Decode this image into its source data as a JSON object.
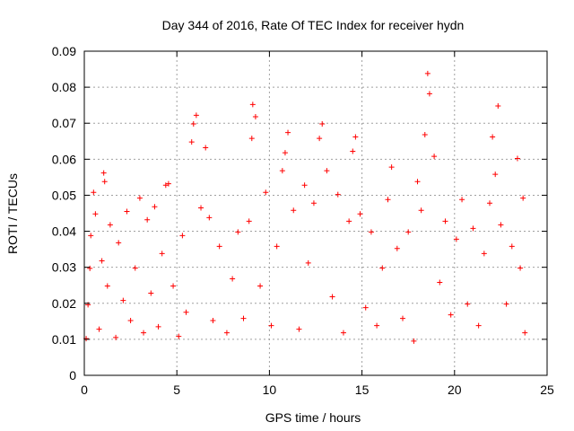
{
  "chart_data": {
    "type": "scatter",
    "title": "Day 344 of 2016, Rate Of TEC Index for receiver hydn",
    "xlabel": "GPS time / hours",
    "ylabel": "ROTI / TECUs",
    "xlim": [
      0,
      25
    ],
    "ylim": [
      0,
      0.09
    ],
    "x_ticks": [
      0,
      5,
      10,
      15,
      20,
      25
    ],
    "x_tick_labels": [
      "0",
      "5",
      "10",
      "15",
      "20",
      "25"
    ],
    "y_ticks": [
      0,
      0.01,
      0.02,
      0.03,
      0.04,
      0.05,
      0.06,
      0.07,
      0.08,
      0.09
    ],
    "y_tick_labels": [
      "0",
      "0.01",
      "0.02",
      "0.03",
      "0.04",
      "0.05",
      "0.06",
      "0.07",
      "0.08",
      "0.09"
    ],
    "grid": true,
    "legend": "none",
    "marker": "plus",
    "series": [
      {
        "color": "#ff0000",
        "points": [
          [
            0.1,
            0.0102
          ],
          [
            0.2,
            0.0196
          ],
          [
            0.3,
            0.0297
          ],
          [
            0.35,
            0.0388
          ],
          [
            0.5,
            0.0508
          ],
          [
            0.6,
            0.0448
          ],
          [
            0.8,
            0.0128
          ],
          [
            0.95,
            0.0318
          ],
          [
            1.05,
            0.0562
          ],
          [
            1.1,
            0.0538
          ],
          [
            1.25,
            0.0248
          ],
          [
            1.4,
            0.0418
          ],
          [
            1.7,
            0.0105
          ],
          [
            1.85,
            0.0368
          ],
          [
            2.1,
            0.0208
          ],
          [
            2.3,
            0.0455
          ],
          [
            2.5,
            0.0152
          ],
          [
            2.75,
            0.0298
          ],
          [
            3.0,
            0.0492
          ],
          [
            3.2,
            0.0118
          ],
          [
            3.4,
            0.0432
          ],
          [
            3.6,
            0.0228
          ],
          [
            3.8,
            0.0468
          ],
          [
            4.0,
            0.0135
          ],
          [
            4.2,
            0.0338
          ],
          [
            4.4,
            0.0528
          ],
          [
            4.55,
            0.0532
          ],
          [
            4.8,
            0.0248
          ],
          [
            5.1,
            0.0108
          ],
          [
            5.3,
            0.0388
          ],
          [
            5.5,
            0.0175
          ],
          [
            5.8,
            0.0648
          ],
          [
            5.9,
            0.0698
          ],
          [
            6.05,
            0.0722
          ],
          [
            6.3,
            0.0465
          ],
          [
            6.55,
            0.0632
          ],
          [
            6.75,
            0.0438
          ],
          [
            6.95,
            0.0152
          ],
          [
            7.3,
            0.0358
          ],
          [
            7.7,
            0.0118
          ],
          [
            8.0,
            0.0268
          ],
          [
            8.3,
            0.0398
          ],
          [
            8.6,
            0.0158
          ],
          [
            8.9,
            0.0428
          ],
          [
            9.05,
            0.0658
          ],
          [
            9.1,
            0.0752
          ],
          [
            9.25,
            0.0718
          ],
          [
            9.5,
            0.0248
          ],
          [
            9.8,
            0.0508
          ],
          [
            10.1,
            0.0138
          ],
          [
            10.4,
            0.0358
          ],
          [
            10.7,
            0.0568
          ],
          [
            10.85,
            0.0618
          ],
          [
            11.0,
            0.0674
          ],
          [
            11.3,
            0.0458
          ],
          [
            11.6,
            0.0128
          ],
          [
            11.9,
            0.0528
          ],
          [
            12.1,
            0.0312
          ],
          [
            12.4,
            0.0478
          ],
          [
            12.7,
            0.0658
          ],
          [
            12.85,
            0.0698
          ],
          [
            13.1,
            0.0568
          ],
          [
            13.4,
            0.0218
          ],
          [
            13.7,
            0.0502
          ],
          [
            14.0,
            0.0118
          ],
          [
            14.3,
            0.0428
          ],
          [
            14.5,
            0.0622
          ],
          [
            14.65,
            0.0662
          ],
          [
            14.9,
            0.0448
          ],
          [
            15.2,
            0.0188
          ],
          [
            15.5,
            0.0398
          ],
          [
            15.8,
            0.0138
          ],
          [
            16.1,
            0.0298
          ],
          [
            16.4,
            0.0488
          ],
          [
            16.6,
            0.0578
          ],
          [
            16.9,
            0.0352
          ],
          [
            17.2,
            0.0158
          ],
          [
            17.5,
            0.0398
          ],
          [
            17.8,
            0.0095
          ],
          [
            18.0,
            0.0538
          ],
          [
            18.2,
            0.0458
          ],
          [
            18.4,
            0.0668
          ],
          [
            18.55,
            0.0838
          ],
          [
            18.65,
            0.0782
          ],
          [
            18.9,
            0.0608
          ],
          [
            19.2,
            0.0258
          ],
          [
            19.5,
            0.0428
          ],
          [
            19.8,
            0.0168
          ],
          [
            20.1,
            0.0378
          ],
          [
            20.4,
            0.0488
          ],
          [
            20.7,
            0.0198
          ],
          [
            21.0,
            0.0408
          ],
          [
            21.3,
            0.0138
          ],
          [
            21.6,
            0.0338
          ],
          [
            21.9,
            0.0478
          ],
          [
            22.05,
            0.0662
          ],
          [
            22.2,
            0.0558
          ],
          [
            22.35,
            0.0748
          ],
          [
            22.5,
            0.0418
          ],
          [
            22.8,
            0.0198
          ],
          [
            23.1,
            0.0358
          ],
          [
            23.4,
            0.0602
          ],
          [
            23.55,
            0.0298
          ],
          [
            23.7,
            0.0492
          ],
          [
            23.8,
            0.0118
          ]
        ]
      }
    ]
  }
}
